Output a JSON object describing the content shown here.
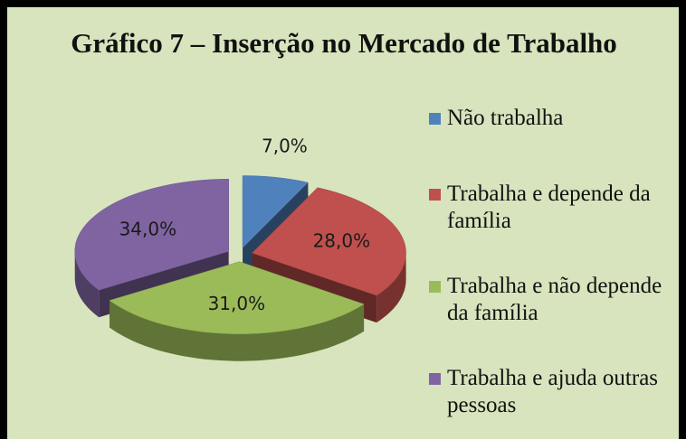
{
  "chart_data": {
    "type": "pie3d",
    "title": "Gráfico 7 – Inserção no Mercado de Trabalho",
    "categories": [
      "Não trabalha",
      "Trabalha e depende da família",
      "Trabalha e não depende da família",
      "Trabalha e ajuda outras pessoas"
    ],
    "values": [
      7,
      28,
      31,
      34
    ],
    "value_labels": [
      "7,0%",
      "28,0%",
      "31,0%",
      "34,0%"
    ],
    "colors": [
      "#4f81bd",
      "#c0504d",
      "#9bbb59",
      "#8064a2"
    ],
    "legend": "right"
  }
}
